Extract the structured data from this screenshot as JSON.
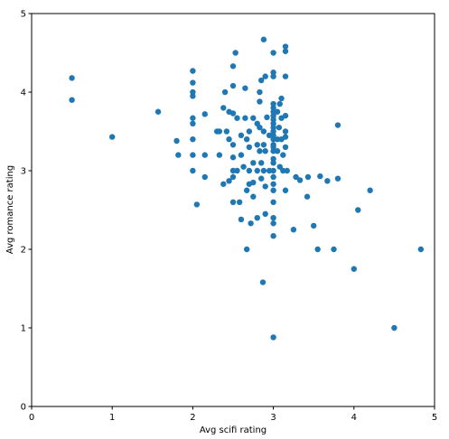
{
  "chart_data": {
    "type": "scatter",
    "title": "",
    "xlabel": "Avg scifi rating",
    "ylabel": "Avg romance rating",
    "xlim": [
      0,
      5
    ],
    "ylim": [
      0,
      5
    ],
    "xticks": [
      0,
      1,
      2,
      3,
      4,
      5
    ],
    "yticks": [
      0,
      1,
      2,
      3,
      4,
      5
    ],
    "grid": false,
    "marker_color": "#1f77b4",
    "points": [
      [
        0.5,
        4.18
      ],
      [
        0.5,
        3.9
      ],
      [
        1.0,
        3.43
      ],
      [
        1.57,
        3.75
      ],
      [
        1.8,
        3.38
      ],
      [
        1.82,
        3.2
      ],
      [
        2.0,
        4.27
      ],
      [
        2.0,
        4.12
      ],
      [
        2.0,
        4.0
      ],
      [
        2.0,
        3.95
      ],
      [
        2.0,
        3.67
      ],
      [
        2.0,
        3.6
      ],
      [
        2.0,
        3.4
      ],
      [
        2.0,
        3.2
      ],
      [
        2.0,
        3.0
      ],
      [
        2.05,
        2.57
      ],
      [
        2.15,
        3.72
      ],
      [
        2.15,
        3.2
      ],
      [
        2.15,
        2.92
      ],
      [
        2.3,
        3.5
      ],
      [
        2.33,
        3.5
      ],
      [
        2.33,
        3.2
      ],
      [
        2.38,
        3.8
      ],
      [
        2.38,
        2.83
      ],
      [
        2.4,
        4.0
      ],
      [
        2.42,
        3.5
      ],
      [
        2.45,
        3.75
      ],
      [
        2.45,
        3.4
      ],
      [
        2.45,
        2.87
      ],
      [
        2.5,
        4.33
      ],
      [
        2.5,
        4.08
      ],
      [
        2.5,
        3.73
      ],
      [
        2.5,
        3.33
      ],
      [
        2.5,
        3.17
      ],
      [
        2.5,
        3.0
      ],
      [
        2.5,
        2.92
      ],
      [
        2.5,
        2.6
      ],
      [
        2.53,
        4.5
      ],
      [
        2.55,
        3.67
      ],
      [
        2.55,
        3.0
      ],
      [
        2.58,
        2.6
      ],
      [
        2.6,
        3.45
      ],
      [
        2.6,
        3.2
      ],
      [
        2.6,
        2.38
      ],
      [
        2.63,
        3.05
      ],
      [
        2.65,
        4.05
      ],
      [
        2.65,
        3.67
      ],
      [
        2.67,
        3.4
      ],
      [
        2.67,
        2.75
      ],
      [
        2.67,
        2.0
      ],
      [
        2.7,
        3.5
      ],
      [
        2.7,
        3.3
      ],
      [
        2.7,
        3.0
      ],
      [
        2.7,
        2.83
      ],
      [
        2.72,
        2.33
      ],
      [
        2.75,
        3.67
      ],
      [
        2.75,
        3.1
      ],
      [
        2.75,
        2.85
      ],
      [
        2.75,
        2.67
      ],
      [
        2.8,
        3.6
      ],
      [
        2.8,
        3.33
      ],
      [
        2.8,
        3.0
      ],
      [
        2.8,
        2.4
      ],
      [
        2.83,
        4.0
      ],
      [
        2.83,
        3.88
      ],
      [
        2.83,
        3.55
      ],
      [
        2.83,
        3.25
      ],
      [
        2.85,
        4.15
      ],
      [
        2.85,
        3.1
      ],
      [
        2.85,
        2.9
      ],
      [
        2.87,
        1.58
      ],
      [
        2.88,
        4.67
      ],
      [
        2.88,
        3.5
      ],
      [
        2.88,
        3.33
      ],
      [
        2.88,
        3.0
      ],
      [
        2.9,
        4.2
      ],
      [
        2.9,
        3.25
      ],
      [
        2.9,
        2.8
      ],
      [
        2.9,
        2.45
      ],
      [
        2.92,
        3.68
      ],
      [
        2.95,
        3.45
      ],
      [
        2.95,
        3.0
      ],
      [
        3.0,
        4.5
      ],
      [
        3.0,
        4.25
      ],
      [
        3.0,
        4.2
      ],
      [
        3.0,
        3.85
      ],
      [
        3.0,
        3.8
      ],
      [
        3.0,
        3.75
      ],
      [
        3.0,
        3.7
      ],
      [
        3.0,
        3.65
      ],
      [
        3.0,
        3.6
      ],
      [
        3.0,
        3.55
      ],
      [
        3.0,
        3.5
      ],
      [
        3.0,
        3.45
      ],
      [
        3.0,
        3.4
      ],
      [
        3.0,
        3.33
      ],
      [
        3.0,
        3.3
      ],
      [
        3.0,
        3.25
      ],
      [
        3.0,
        3.15
      ],
      [
        3.0,
        3.1
      ],
      [
        3.0,
        3.0
      ],
      [
        3.0,
        2.92
      ],
      [
        3.0,
        2.83
      ],
      [
        3.0,
        2.75
      ],
      [
        3.0,
        2.6
      ],
      [
        3.0,
        2.4
      ],
      [
        3.0,
        2.33
      ],
      [
        3.0,
        2.17
      ],
      [
        3.0,
        0.88
      ],
      [
        3.05,
        3.75
      ],
      [
        3.05,
        3.4
      ],
      [
        3.05,
        3.25
      ],
      [
        3.07,
        3.55
      ],
      [
        3.08,
        3.85
      ],
      [
        3.08,
        3.05
      ],
      [
        3.1,
        3.92
      ],
      [
        3.1,
        3.67
      ],
      [
        3.1,
        3.4
      ],
      [
        3.12,
        3.2
      ],
      [
        3.12,
        3.0
      ],
      [
        3.15,
        4.58
      ],
      [
        3.15,
        4.52
      ],
      [
        3.15,
        4.2
      ],
      [
        3.15,
        3.7
      ],
      [
        3.15,
        3.5
      ],
      [
        3.15,
        3.43
      ],
      [
        3.15,
        3.3
      ],
      [
        3.15,
        2.75
      ],
      [
        3.17,
        3.0
      ],
      [
        3.25,
        2.25
      ],
      [
        3.28,
        2.92
      ],
      [
        3.33,
        2.88
      ],
      [
        3.42,
        2.67
      ],
      [
        3.43,
        2.92
      ],
      [
        3.5,
        2.3
      ],
      [
        3.55,
        2.0
      ],
      [
        3.58,
        2.93
      ],
      [
        3.67,
        2.87
      ],
      [
        3.75,
        2.0
      ],
      [
        3.8,
        3.58
      ],
      [
        3.8,
        2.9
      ],
      [
        4.0,
        1.75
      ],
      [
        4.05,
        2.5
      ],
      [
        4.2,
        2.75
      ],
      [
        4.5,
        1.0
      ],
      [
        4.83,
        2.0
      ]
    ]
  }
}
